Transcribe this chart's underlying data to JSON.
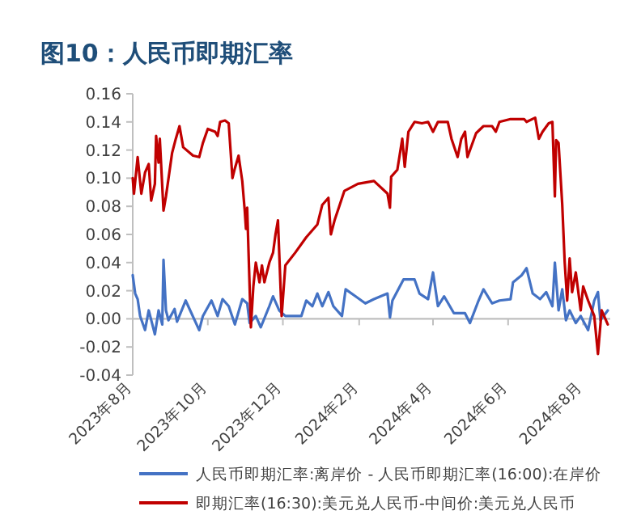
{
  "chart_data": {
    "type": "line",
    "title": "图10：人民币即期汇率",
    "legend": "bottom",
    "xlim": [
      "2023-08-01",
      "2024-08-23"
    ],
    "ylim": [
      -0.04,
      0.16
    ],
    "yticks": [
      {
        "value": -0.04,
        "label": "-0.04"
      },
      {
        "value": -0.02,
        "label": "-0.02"
      },
      {
        "value": 0,
        "label": "0.00"
      },
      {
        "value": 0.02,
        "label": "0.02"
      },
      {
        "value": 0.04,
        "label": "0.04"
      },
      {
        "value": 0.06,
        "label": "0.06"
      },
      {
        "value": 0.08,
        "label": "0.08"
      },
      {
        "value": 0.1,
        "label": "0.10"
      },
      {
        "value": 0.12,
        "label": "0.12"
      },
      {
        "value": 0.14,
        "label": "0.14"
      },
      {
        "value": 0.16,
        "label": "0.16"
      }
    ],
    "xticks": [
      {
        "value": "2023-08-01",
        "label": "2023年8月"
      },
      {
        "value": "2023-10-01",
        "label": "2023年10月"
      },
      {
        "value": "2023-12-01",
        "label": "2023年12月"
      },
      {
        "value": "2024-02-01",
        "label": "2024年2月"
      },
      {
        "value": "2024-04-01",
        "label": "2024年4月"
      },
      {
        "value": "2024-06-01",
        "label": "2024年6月"
      },
      {
        "value": "2024-08-01",
        "label": "2024年8月"
      }
    ],
    "series": [
      {
        "name": "人民币即期汇率:离岸价 - 人民币即期汇率(16:00):在岸价",
        "color": "#4472c4",
        "x": [
          "2023-08-01",
          "2023-08-03",
          "2023-08-05",
          "2023-08-07",
          "2023-08-11",
          "2023-08-14",
          "2023-08-19",
          "2023-08-22",
          "2023-08-25",
          "2023-08-26",
          "2023-08-28",
          "2023-08-30",
          "2023-09-04",
          "2023-09-06",
          "2023-09-13",
          "2023-09-24",
          "2023-09-27",
          "2023-10-04",
          "2023-10-09",
          "2023-10-13",
          "2023-10-18",
          "2023-10-23",
          "2023-10-29",
          "2023-11-02",
          "2023-11-04",
          "2023-11-09",
          "2023-11-13",
          "2023-11-20",
          "2023-11-23",
          "2023-11-28",
          "2023-12-03",
          "2023-12-16",
          "2023-12-20",
          "2023-12-25",
          "2023-12-29",
          "2024-01-02",
          "2024-01-07",
          "2024-01-11",
          "2024-01-18",
          "2024-01-21",
          "2024-01-29",
          "2024-02-06",
          "2024-02-13",
          "2024-02-24",
          "2024-02-26",
          "2024-02-28",
          "2024-03-08",
          "2024-03-17",
          "2024-03-21",
          "2024-03-28",
          "2024-04-01",
          "2024-04-05",
          "2024-04-10",
          "2024-04-18",
          "2024-04-27",
          "2024-05-01",
          "2024-05-08",
          "2024-05-12",
          "2024-05-19",
          "2024-05-25",
          "2024-06-03",
          "2024-06-05",
          "2024-06-12",
          "2024-06-16",
          "2024-06-21",
          "2024-06-27",
          "2024-07-02",
          "2024-07-07",
          "2024-07-09",
          "2024-07-12",
          "2024-07-15",
          "2024-07-18",
          "2024-07-21",
          "2024-07-26",
          "2024-07-30",
          "2024-08-05",
          "2024-08-10",
          "2024-08-13",
          "2024-08-15",
          "2024-08-21"
        ],
        "values": [
          0.031,
          0.018,
          0.014,
          0.002,
          -0.008,
          0.006,
          -0.011,
          0.006,
          -0.004,
          0.042,
          0.006,
          -0.001,
          0.007,
          -0.002,
          0.013,
          -0.008,
          0.002,
          0.013,
          0.002,
          0.014,
          0.009,
          -0.004,
          0.014,
          0.011,
          -0.003,
          0.002,
          -0.006,
          0.009,
          0.016,
          0.006,
          0.002,
          0.002,
          0.013,
          0.009,
          0.018,
          0.009,
          0.019,
          0.009,
          0.002,
          0.021,
          0.016,
          0.011,
          0.014,
          0.018,
          0.001,
          0.013,
          0.028,
          0.028,
          0.018,
          0.014,
          0.033,
          0.009,
          0.016,
          0.004,
          0.004,
          -0.003,
          0.013,
          0.021,
          0.011,
          0.013,
          0.014,
          0.026,
          0.031,
          0.036,
          0.018,
          0.014,
          0.019,
          0.009,
          0.04,
          0.006,
          0.021,
          -0.001,
          0.006,
          -0.003,
          0.002,
          -0.008,
          0.013,
          0.019,
          -0.001,
          0.006
        ]
      },
      {
        "name": "即期汇率(16:30):美元兑人民币-中间价:美元兑人民币",
        "color": "#c00000",
        "x": [
          "2023-08-01",
          "2023-08-02",
          "2023-08-05",
          "2023-08-08",
          "2023-08-11",
          "2023-08-14",
          "2023-08-16",
          "2023-08-19",
          "2023-08-20",
          "2023-08-22",
          "2023-08-23",
          "2023-08-26",
          "2023-08-28",
          "2023-09-02",
          "2023-09-05",
          "2023-09-08",
          "2023-09-11",
          "2023-09-19",
          "2023-09-24",
          "2023-09-27",
          "2023-10-01",
          "2023-10-07",
          "2023-10-09",
          "2023-10-11",
          "2023-10-15",
          "2023-10-18",
          "2023-10-21",
          "2023-10-23",
          "2023-10-26",
          "2023-10-29",
          "2023-10-31",
          "2023-11-01",
          "2023-11-02",
          "2023-11-03",
          "2023-11-05",
          "2023-11-07",
          "2023-11-09",
          "2023-11-12",
          "2023-11-14",
          "2023-11-16",
          "2023-11-20",
          "2023-11-23",
          "2023-11-25",
          "2023-11-27",
          "2023-11-30",
          "2023-12-03",
          "2023-12-11",
          "2023-12-20",
          "2023-12-29",
          "2024-01-02",
          "2024-01-07",
          "2024-01-09",
          "2024-01-12",
          "2024-01-20",
          "2024-01-31",
          "2024-02-13",
          "2024-02-24",
          "2024-02-26",
          "2024-02-27",
          "2024-03-03",
          "2024-03-07",
          "2024-03-09",
          "2024-03-12",
          "2024-03-17",
          "2024-03-23",
          "2024-03-28",
          "2024-04-01",
          "2024-04-05",
          "2024-04-13",
          "2024-04-16",
          "2024-04-21",
          "2024-04-24",
          "2024-04-27",
          "2024-04-29",
          "2024-05-06",
          "2024-05-12",
          "2024-05-19",
          "2024-05-22",
          "2024-05-25",
          "2024-06-03",
          "2024-06-14",
          "2024-06-16",
          "2024-06-23",
          "2024-06-26",
          "2024-06-29",
          "2024-07-04",
          "2024-07-07",
          "2024-07-09",
          "2024-07-10",
          "2024-07-12",
          "2024-07-15",
          "2024-07-17",
          "2024-07-19",
          "2024-07-21",
          "2024-07-23",
          "2024-07-26",
          "2024-07-30",
          "2024-08-01",
          "2024-08-05",
          "2024-08-10",
          "2024-08-13",
          "2024-08-16",
          "2024-08-21"
        ],
        "values": [
          0.1,
          0.089,
          0.115,
          0.089,
          0.104,
          0.11,
          0.084,
          0.096,
          0.13,
          0.111,
          0.128,
          0.077,
          0.087,
          0.118,
          0.128,
          0.137,
          0.122,
          0.116,
          0.115,
          0.125,
          0.135,
          0.133,
          0.13,
          0.14,
          0.141,
          0.139,
          0.1,
          0.107,
          0.116,
          0.098,
          0.077,
          0.064,
          0.079,
          0.05,
          -0.006,
          0.023,
          0.04,
          0.026,
          0.038,
          0.026,
          0.04,
          0.047,
          0.06,
          0.07,
          0.002,
          0.038,
          0.047,
          0.058,
          0.067,
          0.081,
          0.086,
          0.06,
          0.07,
          0.091,
          0.096,
          0.098,
          0.089,
          0.079,
          0.101,
          0.106,
          0.128,
          0.108,
          0.133,
          0.14,
          0.139,
          0.14,
          0.133,
          0.14,
          0.14,
          0.128,
          0.115,
          0.128,
          0.133,
          0.115,
          0.132,
          0.137,
          0.137,
          0.133,
          0.14,
          0.142,
          0.142,
          0.14,
          0.143,
          0.128,
          0.133,
          0.139,
          0.14,
          0.087,
          0.127,
          0.125,
          0.081,
          0.04,
          0.013,
          0.043,
          0.019,
          0.033,
          0.006,
          0.023,
          0.013,
          0.002,
          -0.025,
          0.006,
          -0.004
        ]
      }
    ]
  }
}
